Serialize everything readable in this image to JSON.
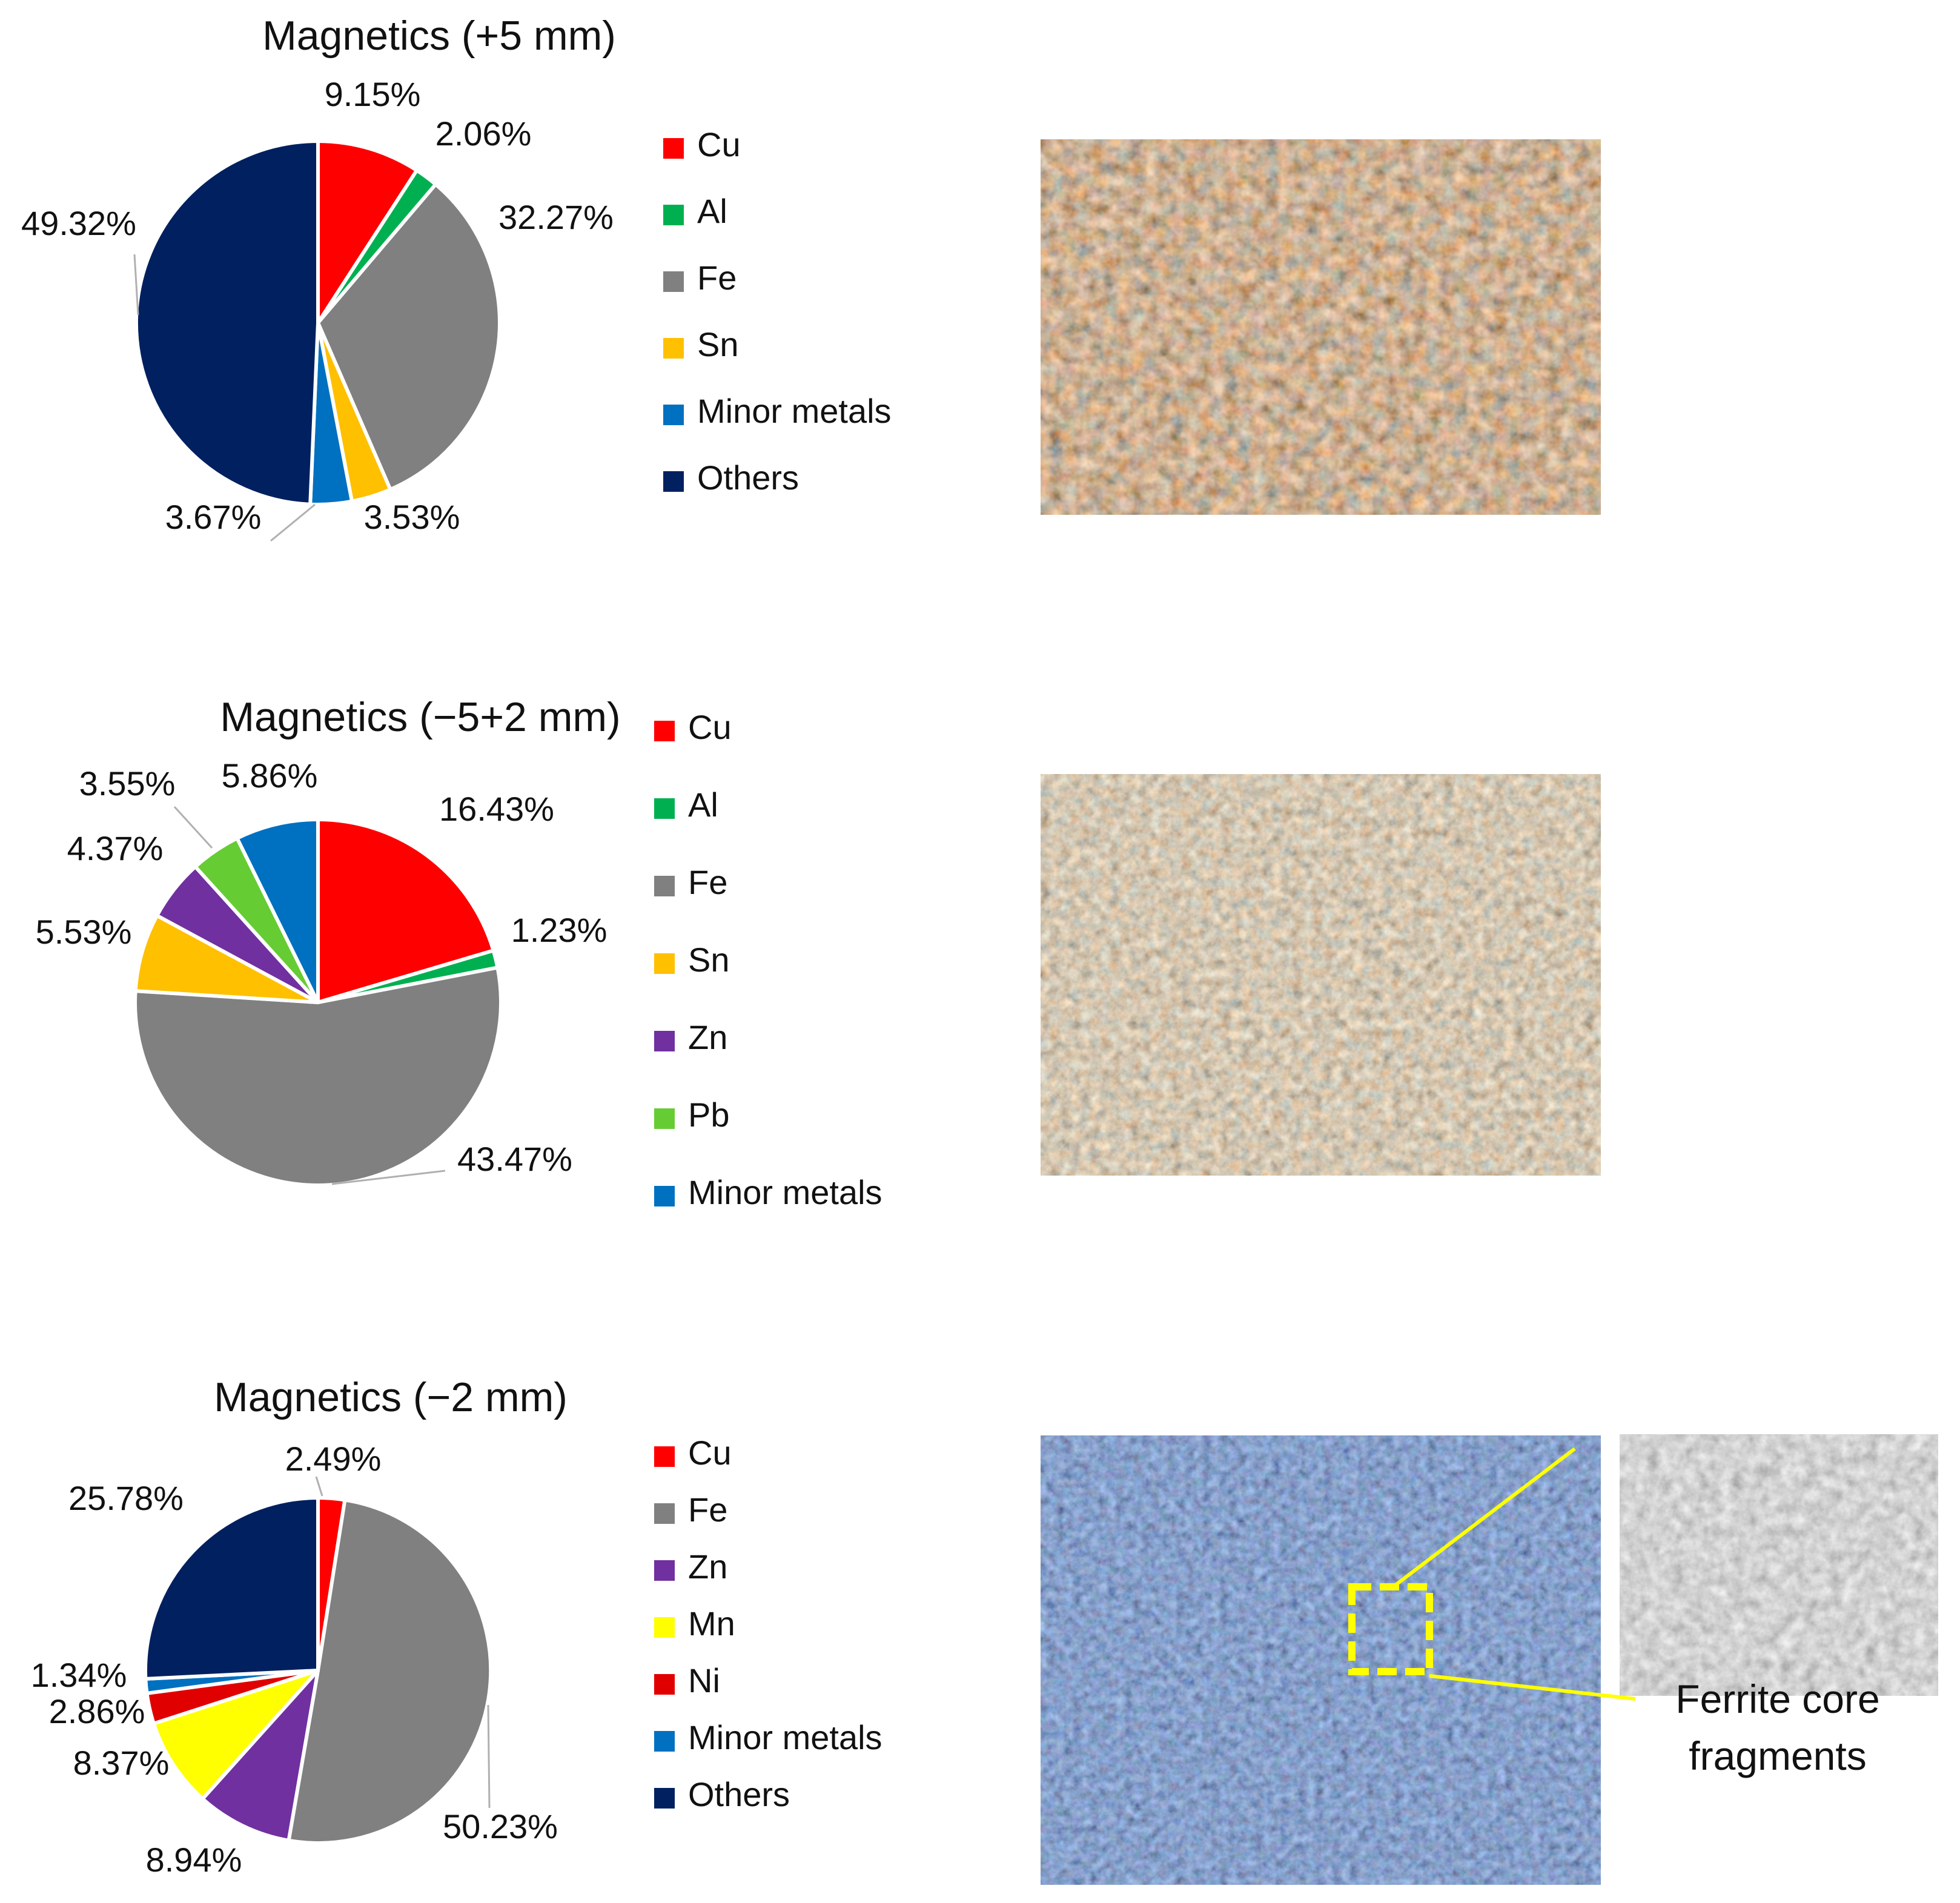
{
  "colors": {
    "Cu": "#ff0000",
    "Al": "#00b050",
    "Fe": "#808080",
    "Sn": "#ffc000",
    "Minor metals": "#0070c0",
    "Others": "#002060",
    "Zn": "#7030a0",
    "Pb": "#66cc33",
    "Mn": "#ffff00",
    "Ni": "#e00000"
  },
  "chart_data": [
    {
      "type": "pie",
      "title": "Magnetics (+5 mm)",
      "categories": [
        "Cu",
        "Al",
        "Fe",
        "Sn",
        "Minor metals",
        "Others"
      ],
      "values": [
        9.15,
        2.06,
        32.27,
        3.53,
        3.67,
        49.32
      ],
      "labels": [
        "9.15%",
        "2.06%",
        "32.27%",
        "3.53%",
        "3.67%",
        "49.32%"
      ],
      "legend": [
        "Cu",
        "Al",
        "Fe",
        "Sn",
        "Minor metals",
        "Others"
      ],
      "legend_position": "right"
    },
    {
      "type": "pie",
      "title": "Magnetics (−5+2 mm)",
      "categories": [
        "Cu",
        "Al",
        "Fe",
        "Sn",
        "Zn",
        "Pb",
        "Minor metals"
      ],
      "values": [
        16.43,
        1.23,
        43.47,
        5.53,
        4.37,
        3.55,
        5.86
      ],
      "labels": [
        "16.43%",
        "1.23%",
        "43.47%",
        "5.53%",
        "4.37%",
        "3.55%",
        "5.86%"
      ],
      "legend": [
        "Cu",
        "Al",
        "Fe",
        "Sn",
        "Zn",
        "Pb",
        "Minor metals"
      ],
      "legend_position": "right"
    },
    {
      "type": "pie",
      "title": "Magnetics (−2 mm)",
      "categories": [
        "Cu",
        "Fe",
        "Zn",
        "Mn",
        "Ni",
        "Minor metals",
        "Others"
      ],
      "values": [
        2.49,
        50.23,
        8.94,
        8.37,
        2.86,
        1.34,
        25.78
      ],
      "labels": [
        "2.49%",
        "50.23%",
        "8.94%",
        "8.37%",
        "2.86%",
        "1.34%",
        "25.78%"
      ],
      "legend": [
        "Cu",
        "Fe",
        "Zn",
        "Mn",
        "Ni",
        "Minor metals",
        "Others"
      ],
      "legend_position": "right"
    }
  ],
  "photos": {
    "callout_line1": "Ferrite core",
    "callout_line2": "fragments"
  }
}
